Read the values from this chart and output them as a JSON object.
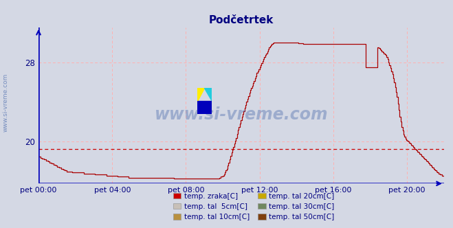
{
  "title": "Podčetrtek",
  "title_color": "#000080",
  "bg_color": "#d4d8e4",
  "plot_bg_color": "#d4d8e4",
  "grid_color": "#ffb0b0",
  "axis_color": "#0000bb",
  "line_color": "#aa0000",
  "hline_value": 19.3,
  "hline_color": "#cc0000",
  "ylim": [
    15.8,
    31.5
  ],
  "yticks": [
    20,
    28
  ],
  "tick_color": "#000080",
  "watermark_text": "www.si-vreme.com",
  "watermark_color": "#4466aa",
  "watermark_alpha": 0.38,
  "ylabel_left": "www.si-vreme.com",
  "xtick_labels": [
    "pet 00:00",
    "pet 04:00",
    "pet 08:00",
    "pet 12:00",
    "pet 16:00",
    "pet 20:00"
  ],
  "xtick_positions": [
    0,
    288,
    576,
    864,
    1152,
    1440
  ],
  "xlim": [
    0,
    1584
  ],
  "legend_items": [
    {
      "label": "temp. zraka[C]",
      "color": "#cc0000"
    },
    {
      "label": "temp. tal  5cm[C]",
      "color": "#c8c0b8"
    },
    {
      "label": "temp. tal 10cm[C]",
      "color": "#b89040"
    },
    {
      "label": "temp. tal 20cm[C]",
      "color": "#c8a800"
    },
    {
      "label": "temp. tal 30cm[C]",
      "color": "#708860"
    },
    {
      "label": "temp. tal 50cm[C]",
      "color": "#804010"
    }
  ],
  "temp_data": [
    18.5,
    18.5,
    18.4,
    18.4,
    18.3,
    18.3,
    18.2,
    18.2,
    18.1,
    18.1,
    18.0,
    18.0,
    17.9,
    17.9,
    17.8,
    17.8,
    17.7,
    17.7,
    17.6,
    17.6,
    17.5,
    17.5,
    17.4,
    17.4,
    17.3,
    17.3,
    17.2,
    17.2,
    17.1,
    17.1,
    17.0,
    17.0,
    17.0,
    17.0,
    17.0,
    17.0,
    16.9,
    16.9,
    16.9,
    16.9,
    16.9,
    16.9,
    16.9,
    16.9,
    16.9,
    16.9,
    16.9,
    16.9,
    16.8,
    16.8,
    16.8,
    16.8,
    16.8,
    16.8,
    16.8,
    16.8,
    16.8,
    16.8,
    16.8,
    16.8,
    16.7,
    16.7,
    16.7,
    16.7,
    16.7,
    16.7,
    16.7,
    16.7,
    16.7,
    16.7,
    16.7,
    16.7,
    16.6,
    16.6,
    16.6,
    16.6,
    16.6,
    16.6,
    16.6,
    16.6,
    16.6,
    16.6,
    16.6,
    16.6,
    16.5,
    16.5,
    16.5,
    16.5,
    16.5,
    16.5,
    16.5,
    16.5,
    16.5,
    16.5,
    16.5,
    16.5,
    16.4,
    16.4,
    16.4,
    16.4,
    16.4,
    16.4,
    16.4,
    16.4,
    16.4,
    16.4,
    16.4,
    16.4,
    16.4,
    16.4,
    16.4,
    16.4,
    16.4,
    16.4,
    16.4,
    16.4,
    16.4,
    16.4,
    16.4,
    16.4,
    16.4,
    16.4,
    16.4,
    16.4,
    16.4,
    16.4,
    16.4,
    16.4,
    16.4,
    16.4,
    16.4,
    16.4,
    16.4,
    16.4,
    16.4,
    16.4,
    16.4,
    16.4,
    16.4,
    16.4,
    16.4,
    16.4,
    16.4,
    16.4,
    16.3,
    16.3,
    16.3,
    16.3,
    16.3,
    16.3,
    16.3,
    16.3,
    16.3,
    16.3,
    16.3,
    16.3,
    16.3,
    16.3,
    16.3,
    16.3,
    16.3,
    16.3,
    16.3,
    16.3,
    16.3,
    16.3,
    16.3,
    16.3,
    16.3,
    16.3,
    16.3,
    16.3,
    16.3,
    16.3,
    16.3,
    16.3,
    16.3,
    16.3,
    16.3,
    16.3,
    16.3,
    16.3,
    16.3,
    16.3,
    16.3,
    16.3,
    16.3,
    16.3,
    16.3,
    16.3,
    16.3,
    16.3,
    16.4,
    16.4,
    16.5,
    16.5,
    16.6,
    16.7,
    16.9,
    17.1,
    17.3,
    17.6,
    17.9,
    18.2,
    18.6,
    18.9,
    19.2,
    19.5,
    19.8,
    20.1,
    20.4,
    20.8,
    21.2,
    21.5,
    21.8,
    22.2,
    22.5,
    22.8,
    23.1,
    23.4,
    23.7,
    24.0,
    24.3,
    24.6,
    24.9,
    25.2,
    25.4,
    25.6,
    25.9,
    26.1,
    26.4,
    26.6,
    26.9,
    27.1,
    27.3,
    27.5,
    27.7,
    27.9,
    28.1,
    28.3,
    28.5,
    28.7,
    28.9,
    29.1,
    29.3,
    29.5,
    29.6,
    29.7,
    29.8,
    29.9,
    30.0,
    30.0,
    30.0,
    30.0,
    30.0,
    30.0,
    30.0,
    30.0,
    30.0,
    30.0,
    30.0,
    30.0,
    30.0,
    30.0,
    30.0,
    30.0,
    30.0,
    30.0,
    30.0,
    30.0,
    30.0,
    30.0,
    30.0,
    30.0,
    30.0,
    30.0,
    29.9,
    29.9,
    29.9,
    29.9,
    29.9,
    29.8,
    29.8,
    29.8,
    29.8,
    29.8,
    29.8,
    29.8,
    29.8,
    29.8,
    29.8,
    29.8,
    29.8,
    29.8,
    29.8,
    29.8,
    29.8,
    29.8,
    29.8,
    29.8,
    29.8,
    29.8,
    29.8,
    29.8,
    29.8,
    29.8,
    29.8,
    29.8,
    29.8,
    29.8,
    29.8,
    29.8,
    29.8,
    29.8,
    29.8,
    29.8,
    29.8,
    29.8,
    29.8,
    29.8,
    29.8,
    29.8,
    29.8,
    29.8,
    29.8,
    29.8,
    29.8,
    29.8,
    29.8,
    29.8,
    29.8,
    29.8,
    29.8,
    29.8,
    29.8,
    29.8,
    29.8,
    29.8,
    29.8,
    29.8,
    29.8,
    29.8,
    29.8,
    29.8,
    29.8,
    29.8,
    29.8,
    29.8,
    27.5,
    27.5,
    27.5,
    27.5,
    27.5,
    27.5,
    27.5,
    27.5,
    27.5,
    27.5,
    27.5,
    27.5,
    29.5,
    29.5,
    29.4,
    29.3,
    29.2,
    29.1,
    29.0,
    28.9,
    28.8,
    28.7,
    28.5,
    28.3,
    28.0,
    27.7,
    27.4,
    27.1,
    26.8,
    26.4,
    26.0,
    25.5,
    25.0,
    24.5,
    23.8,
    23.2,
    22.5,
    22.0,
    21.5,
    21.1,
    20.7,
    20.5,
    20.3,
    20.2,
    20.1,
    20.0,
    19.9,
    19.8,
    19.7,
    19.6,
    19.5,
    19.4,
    19.3,
    19.2,
    19.1,
    19.0,
    18.9,
    18.8,
    18.7,
    18.6,
    18.5,
    18.4,
    18.3,
    18.2,
    18.1,
    18.0,
    17.9,
    17.8,
    17.7,
    17.6,
    17.5,
    17.4,
    17.3,
    17.2,
    17.1,
    17.0,
    16.9,
    16.8,
    16.8,
    16.7,
    16.7,
    16.6,
    16.6,
    16.5,
    16.4,
    16.4,
    16.3,
    16.3,
    16.2,
    16.2,
    16.1,
    16.1,
    16.0,
    16.0,
    15.9,
    15.9
  ]
}
